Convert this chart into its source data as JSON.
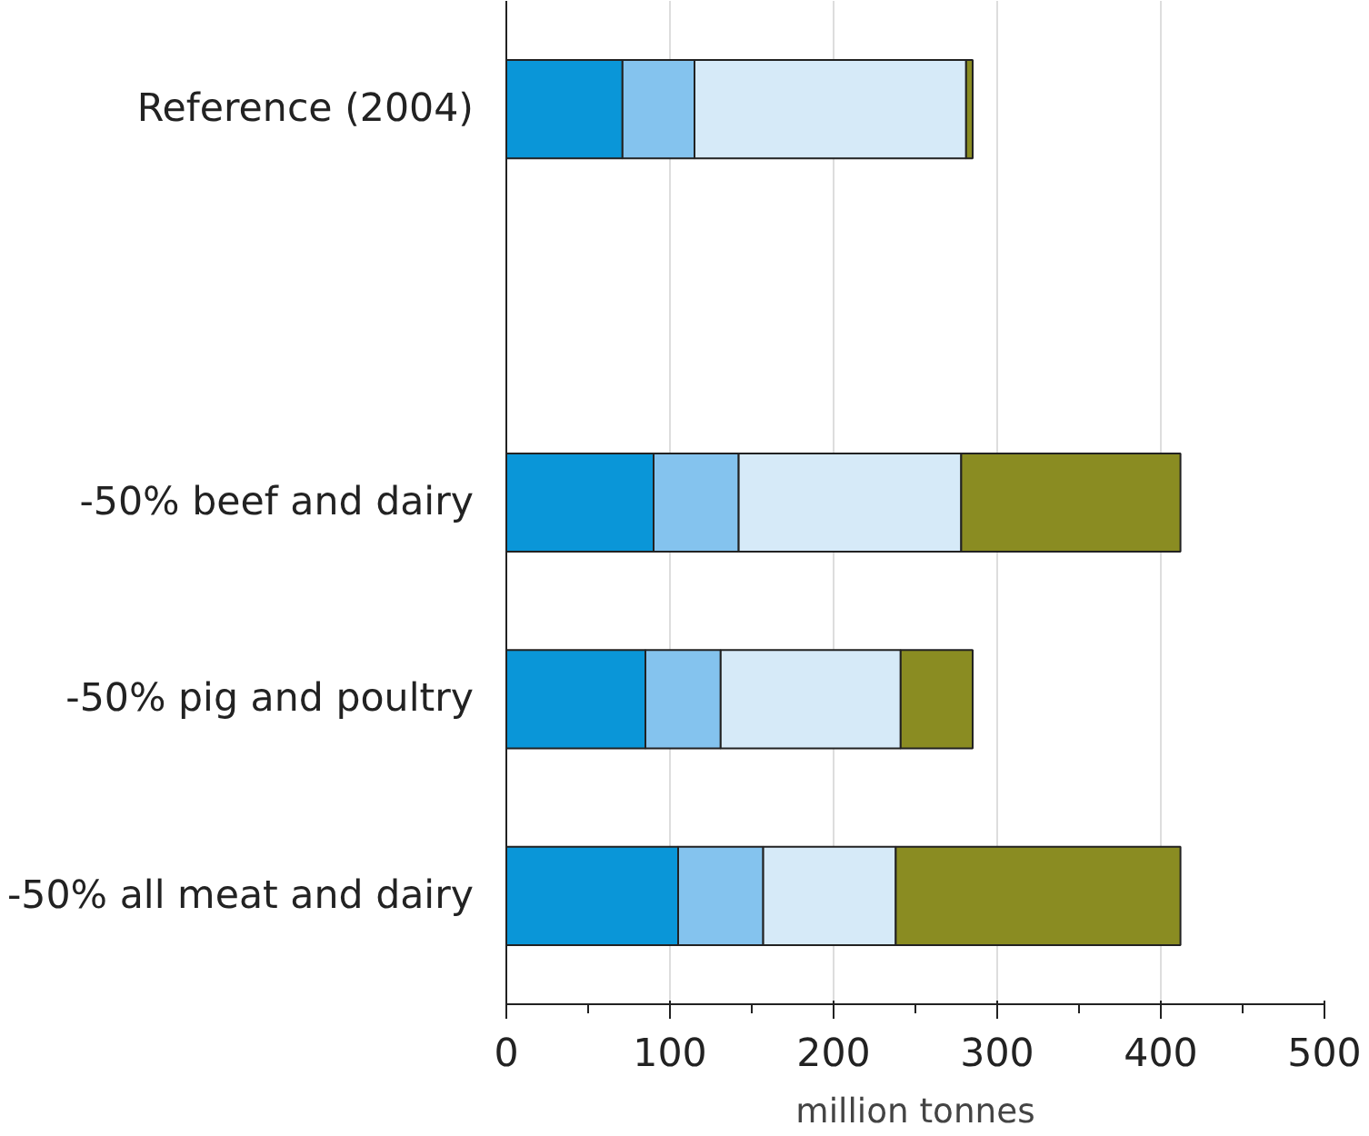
{
  "chart_data": {
    "type": "bar",
    "orientation": "horizontal",
    "stacked": true,
    "xlabel": "million tonnes",
    "categories": [
      "Reference (2004)",
      null,
      "-50% beef and dairy",
      "-50% pig and poultry",
      "-50% all meat and dairy"
    ],
    "series": [
      {
        "color": "#0a96d8",
        "values": [
          71,
          null,
          90,
          85,
          105
        ]
      },
      {
        "color": "#84c3ee",
        "values": [
          44,
          null,
          52,
          46,
          52
        ]
      },
      {
        "color": "#d6eaf8",
        "values": [
          166,
          null,
          136,
          110,
          81
        ]
      },
      {
        "color": "#8a8c22",
        "values": [
          4,
          null,
          134,
          44,
          174
        ]
      }
    ],
    "xlim": [
      0,
      500
    ],
    "xticks": [
      0,
      100,
      200,
      300,
      400,
      500
    ],
    "grid": "x"
  }
}
